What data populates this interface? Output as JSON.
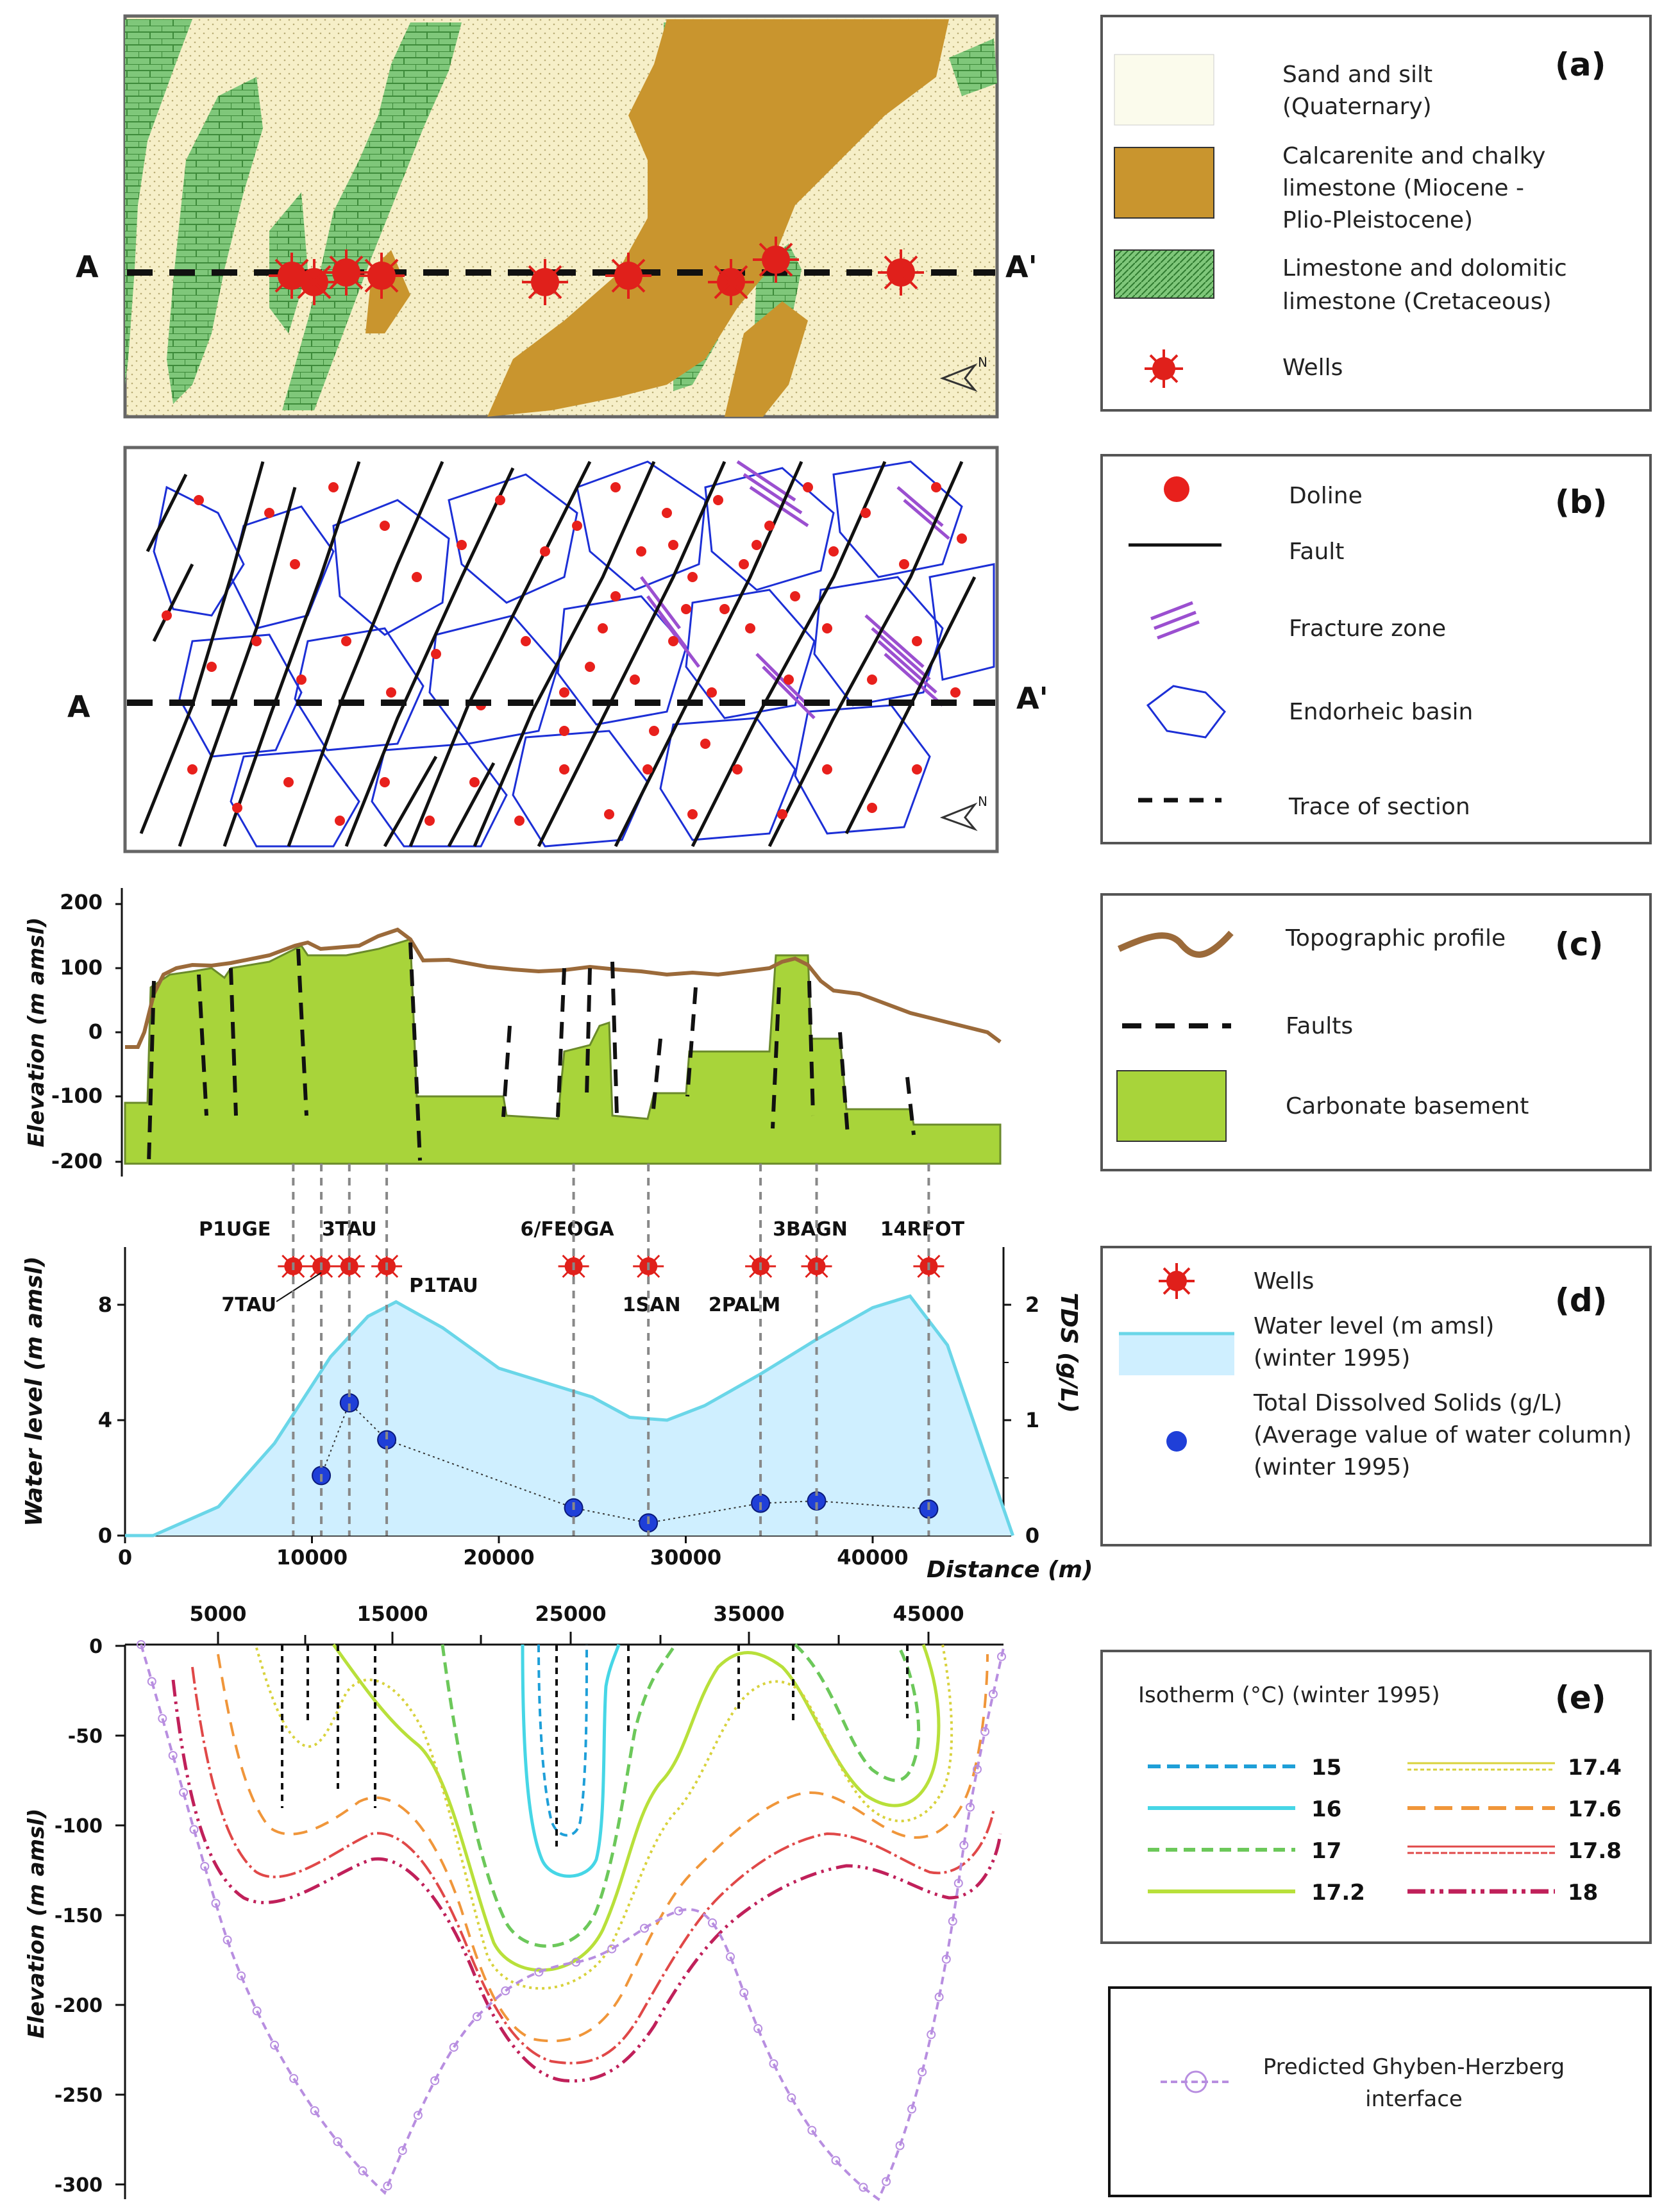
{
  "panels": {
    "a": {
      "tag": "(a)",
      "section_start": "A",
      "section_end": "A'",
      "north_label": "N",
      "legend": [
        {
          "key": "sand",
          "lines": [
            "Sand and silt",
            "(Quaternary)"
          ],
          "color": "#f6efc8"
        },
        {
          "key": "calcarenite",
          "lines": [
            "Calcarenite and chalky",
            "limestone (Miocene -",
            "Plio-Pleistocene)"
          ],
          "color": "#c9952e"
        },
        {
          "key": "limestone",
          "lines": [
            "Limestone and dolomitic",
            "limestone (Cretaceous)"
          ],
          "color": "#7fc77a"
        },
        {
          "key": "wells",
          "lines": [
            "Wells"
          ],
          "color": "#e0201b"
        }
      ]
    },
    "b": {
      "tag": "(b)",
      "section_start": "A",
      "section_end": "A'",
      "north_label": "N",
      "legend": [
        {
          "key": "doline",
          "label": "Doline",
          "color": "#e8201c"
        },
        {
          "key": "fault",
          "label": "Fault",
          "color": "#111111"
        },
        {
          "key": "fracture",
          "label": "Fracture zone",
          "color": "#9b4fd0"
        },
        {
          "key": "basin",
          "label": "Endorheic basin",
          "color": "#1c2fd6"
        },
        {
          "key": "trace",
          "label": "Trace of section",
          "color": "#111111"
        }
      ]
    },
    "c": {
      "tag": "(c)",
      "y_label": "Elevation (m amsl)",
      "y_ticks": [
        "200",
        "100",
        "0",
        "-100",
        "-200"
      ],
      "legend": [
        {
          "key": "topo",
          "label": "Topographic profile",
          "color": "#9b6a3a"
        },
        {
          "key": "faults",
          "label": "Faults",
          "color": "#111111"
        },
        {
          "key": "basement",
          "label": "Carbonate basement",
          "color": "#a8d43a"
        }
      ]
    },
    "d": {
      "tag": "(d)",
      "y_label": "Water level (m amsl)",
      "y2_label": "TDS (g/L)",
      "x_label": "Distance (m)",
      "y_ticks": [
        "0",
        "4",
        "8"
      ],
      "y2_ticks": [
        "0",
        "1",
        "2"
      ],
      "x_ticks": [
        "0",
        "10000",
        "20000",
        "30000",
        "40000"
      ],
      "wells": [
        "P1UGE",
        "7TAU",
        "3TAU",
        "P1TAU",
        "6/FEOGA",
        "1SAN",
        "2PALM",
        "3BAGN",
        "14RFOT"
      ],
      "legend": [
        {
          "key": "wells",
          "label": "Wells",
          "color": "#e0201b"
        },
        {
          "key": "water",
          "lines": [
            "Water level (m amsl)",
            "(winter 1995)"
          ],
          "color": "#cfefff"
        },
        {
          "key": "tds",
          "lines": [
            "Total Dissolved Solids (g/L)",
            "(Average value of water column)",
            "(winter 1995)"
          ],
          "color": "#1f3fd8"
        }
      ]
    },
    "e": {
      "tag": "(e)",
      "y_label": "Elevation (m amsl)",
      "x_ticks": [
        "5000",
        "15000",
        "25000",
        "35000",
        "45000"
      ],
      "y_ticks": [
        "0",
        "-50",
        "-100",
        "-150",
        "-200",
        "-250",
        "-300"
      ],
      "legend_title": "Isotherm (°C) (winter 1995)",
      "isotherms": [
        {
          "value": "15",
          "color": "#1e9fd8"
        },
        {
          "value": "16",
          "color": "#46d6e6"
        },
        {
          "value": "17",
          "color": "#6cc85a"
        },
        {
          "value": "17.2",
          "color": "#b8e03a"
        },
        {
          "value": "17.4",
          "color": "#d8d23c"
        },
        {
          "value": "17.6",
          "color": "#f0963a"
        },
        {
          "value": "17.8",
          "color": "#e04848"
        },
        {
          "value": "18",
          "color": "#c0205a"
        }
      ],
      "ghyben_label": [
        "Predicted Ghyben-Herzberg",
        "interface"
      ],
      "ghyben_color": "#b88ee0"
    }
  },
  "chart_data": [
    {
      "type": "line",
      "title": "(d)",
      "xlabel": "Distance (m)",
      "ylabel": "Water level (m amsl)",
      "y2label": "TDS (g/L)",
      "xlim": [
        0,
        47000
      ],
      "ylim": [
        0,
        10
      ],
      "y2lim": [
        0,
        2.5
      ],
      "series": [
        {
          "name": "Water level (m amsl) (winter 1995)",
          "x": [
            0,
            1500,
            5000,
            8000,
            11000,
            13000,
            14500,
            17000,
            20000,
            23000,
            25000,
            27000,
            29000,
            31000,
            34000,
            37000,
            40000,
            42000,
            44000,
            46000,
            47500
          ],
          "values": [
            0,
            0,
            1.0,
            3.2,
            6.2,
            7.6,
            8.1,
            7.2,
            5.8,
            5.2,
            4.8,
            4.1,
            4.0,
            4.5,
            5.6,
            6.8,
            7.9,
            8.3,
            6.6,
            2.8,
            0
          ]
        },
        {
          "name": "Total Dissolved Solids (g/L)",
          "axis": "y2",
          "x": [
            10500,
            12000,
            14000,
            24000,
            28000,
            34000,
            37000,
            43000
          ],
          "values": [
            0.52,
            1.15,
            0.83,
            0.24,
            0.11,
            0.28,
            0.3,
            0.23
          ]
        }
      ],
      "wells": [
        {
          "name": "P1UGE",
          "x": 9000
        },
        {
          "name": "7TAU",
          "x": 10500
        },
        {
          "name": "3TAU",
          "x": 12000
        },
        {
          "name": "P1TAU",
          "x": 14000
        },
        {
          "name": "6/FEOGA",
          "x": 24000
        },
        {
          "name": "1SAN",
          "x": 28000
        },
        {
          "name": "2PALM",
          "x": 34000
        },
        {
          "name": "3BAGN",
          "x": 37000
        },
        {
          "name": "14RFOT",
          "x": 43000
        }
      ]
    }
  ]
}
